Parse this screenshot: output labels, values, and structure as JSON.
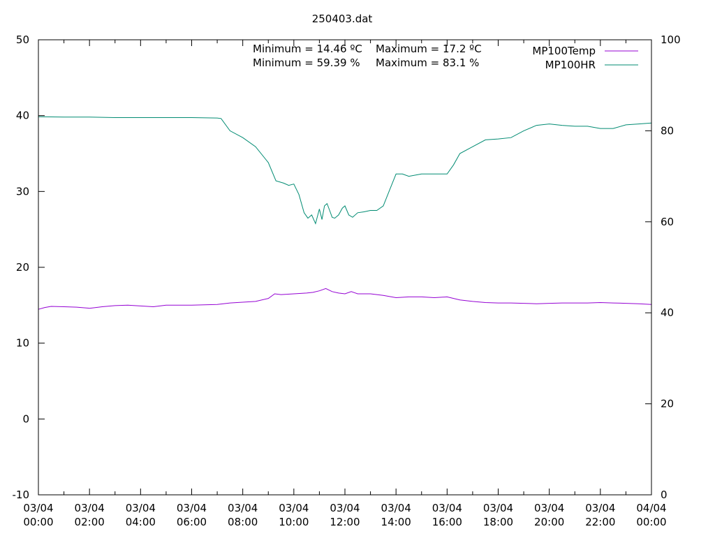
{
  "chart_data": {
    "type": "line",
    "title": "250403.dat",
    "xlabel": "",
    "ylabel": "",
    "y2label": "",
    "ylim": [
      -10,
      50
    ],
    "y2lim": [
      0,
      100
    ],
    "yticks": [
      "-10",
      "0",
      "10",
      "20",
      "30",
      "40",
      "50"
    ],
    "y2ticks": [
      "0",
      "20",
      "40",
      "60",
      "80",
      "100"
    ],
    "xlim_hours": [
      0,
      24
    ],
    "xticks": [
      {
        "date": "03/04",
        "time": "00:00"
      },
      {
        "date": "03/04",
        "time": "02:00"
      },
      {
        "date": "03/04",
        "time": "04:00"
      },
      {
        "date": "03/04",
        "time": "06:00"
      },
      {
        "date": "03/04",
        "time": "08:00"
      },
      {
        "date": "03/04",
        "time": "10:00"
      },
      {
        "date": "03/04",
        "time": "12:00"
      },
      {
        "date": "03/04",
        "time": "14:00"
      },
      {
        "date": "03/04",
        "time": "16:00"
      },
      {
        "date": "03/04",
        "time": "18:00"
      },
      {
        "date": "03/04",
        "time": "20:00"
      },
      {
        "date": "03/04",
        "time": "22:00"
      },
      {
        "date": "04/04",
        "time": "00:00"
      }
    ],
    "annotations": {
      "temp_min": "Minimum = 14.46 ºC",
      "temp_max": "Maximum = 17.2 ºC",
      "hr_min": "Minimum = 59.39 %",
      "hr_max": "Maximum = 83.1 %"
    },
    "legend_position": "top-right",
    "grid": false,
    "series": [
      {
        "name": "MP100Temp",
        "axis": "y1",
        "color": "#9400d3",
        "x": [
          0,
          0.25,
          0.5,
          1,
          1.5,
          2,
          2.5,
          3,
          3.5,
          4,
          4.5,
          5,
          5.5,
          6,
          6.5,
          7,
          7.5,
          8,
          8.5,
          9,
          9.25,
          9.5,
          10,
          10.5,
          10.75,
          11,
          11.25,
          11.5,
          11.75,
          12,
          12.25,
          12.5,
          13,
          13.5,
          14,
          14.5,
          15,
          15.5,
          16,
          16.5,
          17,
          17.5,
          18,
          18.5,
          19,
          19.5,
          20,
          20.5,
          21,
          21.5,
          22,
          22.5,
          23,
          23.5,
          24
        ],
        "y": [
          14.46,
          14.7,
          14.85,
          14.8,
          14.75,
          14.6,
          14.8,
          14.95,
          15.0,
          14.9,
          14.8,
          15.0,
          15.0,
          15.0,
          15.05,
          15.1,
          15.3,
          15.4,
          15.5,
          15.9,
          16.5,
          16.4,
          16.5,
          16.6,
          16.7,
          16.9,
          17.2,
          16.8,
          16.6,
          16.5,
          16.8,
          16.5,
          16.5,
          16.3,
          16.0,
          16.1,
          16.1,
          16.0,
          16.1,
          15.7,
          15.5,
          15.35,
          15.3,
          15.3,
          15.25,
          15.2,
          15.25,
          15.3,
          15.3,
          15.3,
          15.35,
          15.3,
          15.25,
          15.2,
          15.1
        ]
      },
      {
        "name": "MP100HR",
        "axis": "y2",
        "color": "#008b72",
        "x": [
          0,
          1,
          2,
          3,
          4,
          5,
          6,
          7,
          7.15,
          7.5,
          8,
          8.5,
          9,
          9.3,
          9.6,
          9.8,
          10,
          10.2,
          10.4,
          10.55,
          10.7,
          10.85,
          11,
          11.1,
          11.2,
          11.3,
          11.4,
          11.5,
          11.6,
          11.75,
          11.9,
          12,
          12.15,
          12.3,
          12.5,
          12.75,
          13,
          13.25,
          13.5,
          13.75,
          14,
          14.25,
          14.5,
          15,
          15.5,
          16,
          16.25,
          16.5,
          17,
          17.5,
          18,
          18.5,
          19,
          19.5,
          20,
          20.5,
          21,
          21.5,
          22,
          22.5,
          23,
          23.5,
          24
        ],
        "y": [
          83.1,
          83.0,
          83.0,
          82.9,
          82.9,
          82.9,
          82.9,
          82.8,
          82.7,
          80.0,
          78.5,
          76.5,
          73.0,
          69.0,
          68.5,
          68.0,
          68.3,
          66.0,
          62.0,
          60.8,
          61.5,
          59.6,
          62.8,
          60.5,
          63.5,
          64.0,
          62.5,
          61.0,
          60.8,
          61.5,
          63.0,
          63.5,
          61.5,
          61.0,
          62.0,
          62.2,
          62.5,
          62.5,
          63.5,
          67.0,
          70.5,
          70.5,
          70.0,
          70.5,
          70.5,
          70.5,
          72.5,
          75.0,
          76.5,
          78.0,
          78.2,
          78.5,
          80.0,
          81.2,
          81.5,
          81.2,
          81.0,
          81.0,
          80.5,
          80.5,
          81.3,
          81.5,
          81.7
        ]
      }
    ]
  }
}
